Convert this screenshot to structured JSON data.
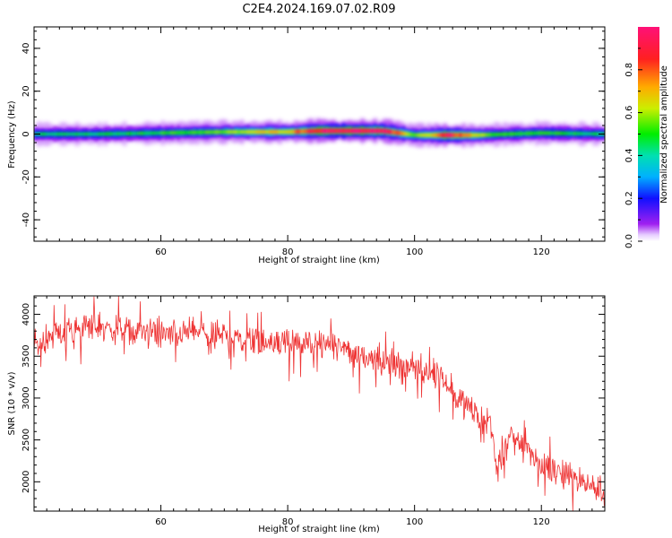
{
  "title": "C2E4.2024.169.07.02.R09",
  "chart_data": [
    {
      "type": "heatmap",
      "xlabel": "Height of straight line (km)",
      "ylabel": "Frequency (Hz)",
      "xlim": [
        40,
        130
      ],
      "ylim": [
        -50,
        50
      ],
      "xticks": [
        60,
        80,
        100,
        120
      ],
      "yticks": [
        -40,
        -20,
        0,
        20,
        40
      ],
      "colorbar": {
        "label": "Normalized spectral amplitude",
        "range": [
          0,
          1
        ],
        "ticks": [
          "0.0",
          "0.2",
          "0.4",
          "0.6",
          "0.8"
        ],
        "colormap": "rainbow (purple-blue-cyan-green-yellow-orange-red-pink)"
      },
      "band": {
        "center_freq_hz": [
          [
            40,
            0
          ],
          [
            50,
            0
          ],
          [
            60,
            0.5
          ],
          [
            70,
            1
          ],
          [
            80,
            1
          ],
          [
            85,
            1.5
          ],
          [
            90,
            1.5
          ],
          [
            95,
            1.5
          ],
          [
            100,
            -0.5
          ],
          [
            105,
            -0.5
          ],
          [
            110,
            -0.5
          ],
          [
            120,
            0.5
          ],
          [
            130,
            0
          ]
        ],
        "peak_amplitude": [
          [
            40,
            0.45
          ],
          [
            50,
            0.45
          ],
          [
            60,
            0.5
          ],
          [
            70,
            0.55
          ],
          [
            75,
            0.65
          ],
          [
            80,
            0.7
          ],
          [
            85,
            0.95
          ],
          [
            90,
            0.98
          ],
          [
            95,
            0.95
          ],
          [
            100,
            0.55
          ],
          [
            103,
            0.7
          ],
          [
            105,
            0.95
          ],
          [
            108,
            0.75
          ],
          [
            112,
            0.5
          ],
          [
            120,
            0.5
          ],
          [
            130,
            0.45
          ]
        ]
      }
    },
    {
      "type": "line",
      "xlabel": "Height of straight line (km)",
      "ylabel": "SNR (10 * v/v)",
      "xlim": [
        40,
        130
      ],
      "ylim": [
        1650,
        4220
      ],
      "xticks": [
        60,
        80,
        100,
        120
      ],
      "yticks": [
        2000,
        2500,
        3000,
        3500,
        4000
      ],
      "color": "#ee3333",
      "series": [
        {
          "x": [
            40,
            45,
            50,
            55,
            60,
            65,
            70,
            75,
            80,
            85,
            90,
            95,
            100,
            103,
            105,
            108,
            110,
            112,
            113,
            115,
            118,
            120,
            125,
            130
          ],
          "y": [
            3650,
            3800,
            3850,
            3800,
            3750,
            3800,
            3750,
            3700,
            3650,
            3650,
            3550,
            3450,
            3350,
            3300,
            3200,
            2900,
            2800,
            2700,
            2100,
            2550,
            2400,
            2200,
            2050,
            1850
          ]
        }
      ]
    }
  ]
}
